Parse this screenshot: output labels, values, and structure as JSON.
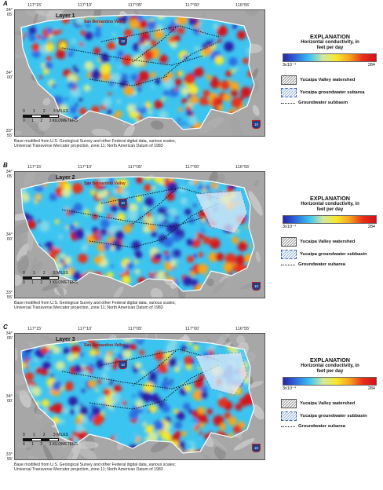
{
  "panels": [
    {
      "letter": "A",
      "layer": "Layer 1",
      "legend_items": [
        "Yucaipa Valley watershed",
        "Yucaipa groundwater subarea",
        "Groundwater subbasin"
      ]
    },
    {
      "letter": "B",
      "layer": "Layer 2",
      "legend_items": [
        "Yucaipa Valley watershed",
        "Yucaipa groundwater subbasin",
        "Groundwater subarea"
      ]
    },
    {
      "letter": "C",
      "layer": "Layer 3",
      "legend_items": [
        "Yucaipa Valley watershed",
        "Yucaipa groundwater subbasin",
        "Groundwater subarea"
      ]
    }
  ],
  "lon_ticks": [
    "117°15'",
    "117°10'",
    "117°05'",
    "117°00'",
    "116°55'"
  ],
  "lat_ticks": [
    {
      "deg": "34°",
      "min": "05'"
    },
    {
      "deg": "34°",
      "min": "00'"
    },
    {
      "deg": "33°",
      "min": "55'"
    }
  ],
  "place_name": "San Bernardino Valley",
  "highway": "10",
  "explanation": {
    "title": "EXPLANATION",
    "subtitle_1": "Horizontal conductivity, in",
    "subtitle_2": "feet per day",
    "min": "3x10⁻⁴",
    "max": "284"
  },
  "scale": {
    "miles": [
      "0",
      "1",
      "2",
      "3 MILES"
    ],
    "km": [
      "0",
      "1",
      "2",
      "3 KILOMETERS"
    ]
  },
  "credit": [
    "Base modified from U.S. Geological Survey and other Federal digital data, various scales;",
    "Universal Transverse Mercator projection, zone 11; North American Datum of 1983"
  ],
  "colors": {
    "low": "#2b22a8",
    "mid": "#3cc4f0",
    "high": "#d2121b",
    "relief": "#9a9a9a"
  }
}
